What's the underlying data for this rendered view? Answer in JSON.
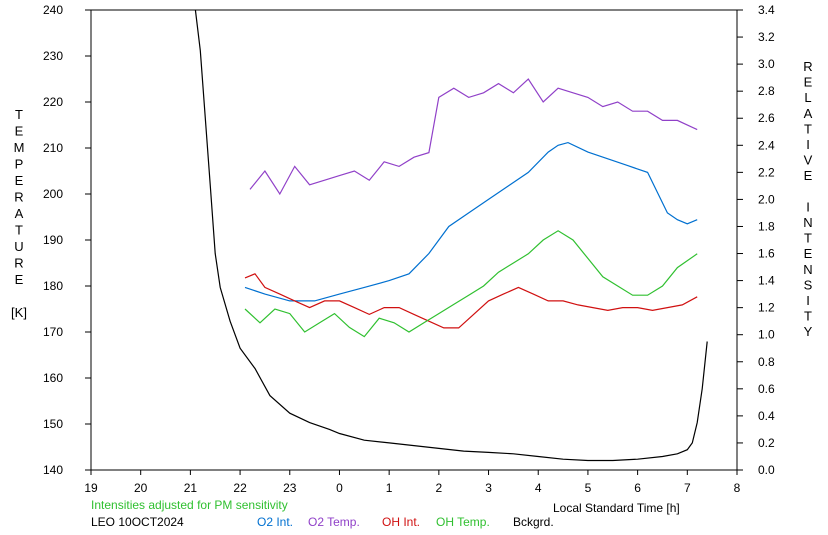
{
  "chart_data": {
    "type": "line",
    "x_axis": {
      "label": "Local Standard Time [h]",
      "range": [
        19,
        32
      ],
      "tick_labels": [
        "19",
        "20",
        "21",
        "22",
        "23",
        "0",
        "1",
        "2",
        "3",
        "4",
        "5",
        "6",
        "7",
        "8"
      ]
    },
    "y_left": {
      "label_letters": [
        "T",
        "E",
        "M",
        "P",
        "E",
        "R",
        "A",
        "T",
        "U",
        "R",
        "E",
        "",
        "[K]"
      ],
      "range": [
        140,
        240
      ],
      "tick_labels": [
        "140",
        "150",
        "160",
        "170",
        "180",
        "190",
        "200",
        "210",
        "220",
        "230",
        "240"
      ]
    },
    "y_right": {
      "label_letters": [
        "R",
        "E",
        "L",
        "A",
        "T",
        "I",
        "V",
        "E",
        "",
        "I",
        "N",
        "T",
        "E",
        "N",
        "S",
        "I",
        "T",
        "Y"
      ],
      "range": [
        0.0,
        3.4
      ],
      "tick_labels": [
        "0.0",
        "0.2",
        "0.4",
        "0.6",
        "0.8",
        "1.0",
        "1.2",
        "1.4",
        "1.6",
        "1.8",
        "2.0",
        "2.2",
        "2.4",
        "2.6",
        "2.8",
        "3.0",
        "3.2",
        "3.4"
      ]
    },
    "note": "Intensities adjusted for PM sensitivity",
    "station": "LEO 10OCT2024",
    "grid": false,
    "legend_position": "bottom",
    "series": [
      {
        "name": "O2 Int.",
        "axis": "right",
        "color": "#0070d0",
        "points": [
          [
            22.1,
            1.35
          ],
          [
            22.5,
            1.3
          ],
          [
            23,
            1.25
          ],
          [
            23.5,
            1.25
          ],
          [
            24,
            1.3
          ],
          [
            24.5,
            1.35
          ],
          [
            25,
            1.4
          ],
          [
            25.4,
            1.45
          ],
          [
            25.8,
            1.6
          ],
          [
            26.2,
            1.8
          ],
          [
            26.6,
            1.9
          ],
          [
            27,
            2.0
          ],
          [
            27.4,
            2.1
          ],
          [
            27.8,
            2.2
          ],
          [
            28.2,
            2.35
          ],
          [
            28.4,
            2.4
          ],
          [
            28.6,
            2.42
          ],
          [
            29,
            2.35
          ],
          [
            29.4,
            2.3
          ],
          [
            29.8,
            2.25
          ],
          [
            30.2,
            2.2
          ],
          [
            30.6,
            1.9
          ],
          [
            30.8,
            1.85
          ],
          [
            31.0,
            1.82
          ],
          [
            31.2,
            1.85
          ]
        ]
      },
      {
        "name": "O2 Temp.",
        "axis": "left",
        "color": "#9040c8",
        "points": [
          [
            22.2,
            201
          ],
          [
            22.5,
            205
          ],
          [
            22.8,
            200
          ],
          [
            23.1,
            206
          ],
          [
            23.4,
            202
          ],
          [
            23.7,
            203
          ],
          [
            24.0,
            204
          ],
          [
            24.3,
            205
          ],
          [
            24.6,
            203
          ],
          [
            24.9,
            207
          ],
          [
            25.2,
            206
          ],
          [
            25.5,
            208
          ],
          [
            25.8,
            209
          ],
          [
            26.0,
            221
          ],
          [
            26.3,
            223
          ],
          [
            26.6,
            221
          ],
          [
            26.9,
            222
          ],
          [
            27.2,
            224
          ],
          [
            27.5,
            222
          ],
          [
            27.8,
            225
          ],
          [
            28.1,
            220
          ],
          [
            28.4,
            223
          ],
          [
            28.7,
            222
          ],
          [
            29.0,
            221
          ],
          [
            29.3,
            219
          ],
          [
            29.6,
            220
          ],
          [
            29.9,
            218
          ],
          [
            30.2,
            218
          ],
          [
            30.5,
            216
          ],
          [
            30.8,
            216
          ],
          [
            31.2,
            214
          ]
        ]
      },
      {
        "name": "OH Int.",
        "axis": "right",
        "color": "#d01010",
        "points": [
          [
            22.1,
            1.42
          ],
          [
            22.3,
            1.45
          ],
          [
            22.5,
            1.35
          ],
          [
            22.8,
            1.3
          ],
          [
            23.1,
            1.25
          ],
          [
            23.4,
            1.2
          ],
          [
            23.7,
            1.25
          ],
          [
            24.0,
            1.25
          ],
          [
            24.3,
            1.2
          ],
          [
            24.6,
            1.15
          ],
          [
            24.9,
            1.2
          ],
          [
            25.2,
            1.2
          ],
          [
            25.5,
            1.15
          ],
          [
            25.8,
            1.1
          ],
          [
            26.1,
            1.05
          ],
          [
            26.4,
            1.05
          ],
          [
            26.7,
            1.15
          ],
          [
            27.0,
            1.25
          ],
          [
            27.3,
            1.3
          ],
          [
            27.6,
            1.35
          ],
          [
            27.9,
            1.3
          ],
          [
            28.2,
            1.25
          ],
          [
            28.5,
            1.25
          ],
          [
            28.8,
            1.22
          ],
          [
            29.1,
            1.2
          ],
          [
            29.4,
            1.18
          ],
          [
            29.7,
            1.2
          ],
          [
            30.0,
            1.2
          ],
          [
            30.3,
            1.18
          ],
          [
            30.6,
            1.2
          ],
          [
            30.9,
            1.22
          ],
          [
            31.2,
            1.28
          ]
        ]
      },
      {
        "name": "OH Temp.",
        "axis": "left",
        "color": "#30c030",
        "points": [
          [
            22.1,
            175
          ],
          [
            22.4,
            172
          ],
          [
            22.7,
            175
          ],
          [
            23.0,
            174
          ],
          [
            23.3,
            170
          ],
          [
            23.6,
            172
          ],
          [
            23.9,
            174
          ],
          [
            24.2,
            171
          ],
          [
            24.5,
            169
          ],
          [
            24.8,
            173
          ],
          [
            25.1,
            172
          ],
          [
            25.4,
            170
          ],
          [
            25.7,
            172
          ],
          [
            26.0,
            174
          ],
          [
            26.3,
            176
          ],
          [
            26.6,
            178
          ],
          [
            26.9,
            180
          ],
          [
            27.2,
            183
          ],
          [
            27.5,
            185
          ],
          [
            27.8,
            187
          ],
          [
            28.1,
            190
          ],
          [
            28.4,
            192
          ],
          [
            28.7,
            190
          ],
          [
            29.0,
            186
          ],
          [
            29.3,
            182
          ],
          [
            29.6,
            180
          ],
          [
            29.9,
            178
          ],
          [
            30.2,
            178
          ],
          [
            30.5,
            180
          ],
          [
            30.8,
            184
          ],
          [
            31.2,
            187
          ]
        ]
      },
      {
        "name": "Bckgrd.",
        "axis": "right",
        "color": "#000000",
        "points": [
          [
            21.1,
            3.45
          ],
          [
            21.2,
            3.1
          ],
          [
            21.3,
            2.6
          ],
          [
            21.4,
            2.1
          ],
          [
            21.5,
            1.6
          ],
          [
            21.6,
            1.35
          ],
          [
            21.8,
            1.1
          ],
          [
            22.0,
            0.9
          ],
          [
            22.3,
            0.75
          ],
          [
            22.6,
            0.55
          ],
          [
            23.0,
            0.42
          ],
          [
            23.4,
            0.35
          ],
          [
            23.8,
            0.3
          ],
          [
            24.0,
            0.27
          ],
          [
            24.5,
            0.22
          ],
          [
            25.0,
            0.2
          ],
          [
            25.5,
            0.18
          ],
          [
            26.0,
            0.16
          ],
          [
            26.5,
            0.14
          ],
          [
            27.0,
            0.13
          ],
          [
            27.5,
            0.12
          ],
          [
            28.0,
            0.1
          ],
          [
            28.5,
            0.08
          ],
          [
            29.0,
            0.07
          ],
          [
            29.5,
            0.07
          ],
          [
            30.0,
            0.08
          ],
          [
            30.5,
            0.1
          ],
          [
            30.8,
            0.12
          ],
          [
            31.0,
            0.15
          ],
          [
            31.1,
            0.2
          ],
          [
            31.2,
            0.35
          ],
          [
            31.3,
            0.6
          ],
          [
            31.4,
            0.95
          ]
        ]
      }
    ]
  }
}
